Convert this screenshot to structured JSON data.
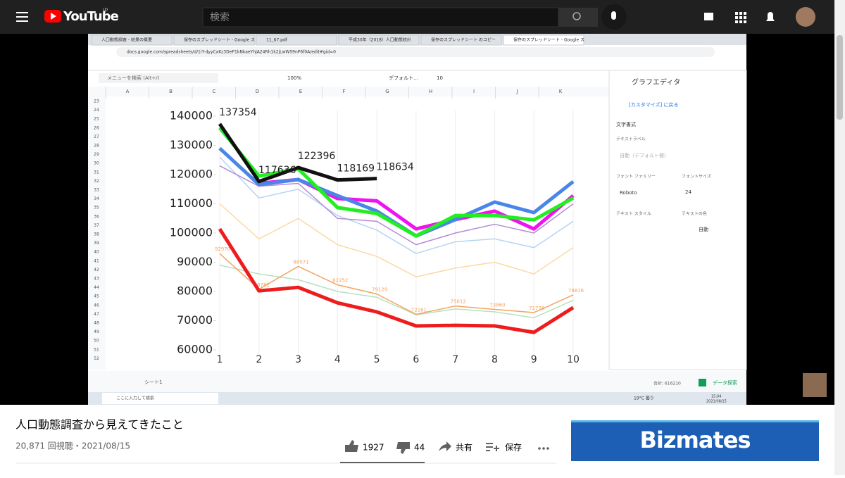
{
  "header": {
    "logo": "YouTube",
    "region": "JP",
    "search_placeholder": "検索"
  },
  "video": {
    "browser": {
      "tabs": [
        "人口動態調査 - 結果の概要",
        "保存のスプレッドシート - Google ス",
        "11_67.pdf",
        "平成30年（2018）人口動態統計",
        "保存のスプレッドシート のコピー",
        "保存のスプレッドシート - Google ス"
      ],
      "url": "docs.google.com/spreadsheets/d/1iY-dyyCxKz3DeP1kNkaeYhJA24Rh1k2jLwWS9nP6f0A/edit#gid=0"
    },
    "sheet": {
      "menu_search": "メニューを検索 (Alt+/)",
      "zoom": "100%",
      "font": "デフォルト...",
      "size": "10",
      "columns": [
        "A",
        "B",
        "C",
        "D",
        "E",
        "F",
        "G",
        "H",
        "I",
        "J",
        "K"
      ],
      "rows": [
        23,
        24,
        25,
        26,
        27,
        28,
        29,
        30,
        31,
        32,
        33,
        34,
        35,
        36,
        37,
        38,
        39,
        40,
        41,
        42,
        43,
        44,
        45,
        46,
        47,
        48,
        49,
        50,
        51,
        52
      ],
      "sheet_name": "シート1",
      "sum": "合計: 616210",
      "explore": "データ探索"
    },
    "editor": {
      "title": "グラフエディタ",
      "back": "[カスタマイズ] に戻る",
      "section": "文字書式",
      "text_label": "テキストラベル",
      "text_label_value": "自動（デフォルト値）",
      "font_family": "フォント ファミリー",
      "font_size": "フォントサイズ",
      "font_family_value": "Roboto",
      "font_size_value": "24",
      "text_style": "テキスト スタイル",
      "text_color": "テキストの色",
      "text_color_value": "自動"
    },
    "chart": {
      "ylim": [
        58000,
        142000
      ],
      "yticks": [
        60000,
        70000,
        80000,
        90000,
        100000,
        110000,
        120000,
        130000,
        140000
      ],
      "xlim": [
        0.9,
        10.85
      ],
      "x": [
        1,
        2,
        3,
        4,
        5,
        6,
        7,
        8,
        9,
        10
      ],
      "series": [
        {
          "color": "#b3d4f5",
          "values": [
            126000,
            112000,
            115000,
            106000,
            101000,
            93000,
            97000,
            98000,
            95000,
            104000
          ]
        },
        {
          "color": "#fbd9a6",
          "values": [
            110000,
            98000,
            105000,
            96000,
            92000,
            85000,
            88000,
            90000,
            86000,
            95000
          ]
        },
        {
          "color": "#b7e1c0",
          "values": [
            89000,
            86000,
            84000,
            80000,
            78000,
            72000,
            74000,
            73000,
            71000,
            77000
          ]
        },
        {
          "color": "#b38ad6",
          "values": [
            123000,
            116000,
            117000,
            105000,
            104000,
            96000,
            100000,
            103000,
            100000,
            110000
          ]
        },
        {
          "color": "#f4a460",
          "data_labels": true,
          "values": [
            92970,
            80782,
            88571,
            82252,
            79129,
            72161,
            75012,
            73860,
            72778,
            78816
          ]
        },
        {
          "color": "#ee1c1c",
          "values": [
            101400,
            80200,
            81400,
            76100,
            73000,
            68200,
            68400,
            68200,
            66000,
            74500
          ]
        },
        {
          "color": "#f012f0",
          "values": [
            null,
            117000,
            118300,
            111800,
            111000,
            101400,
            104600,
            107500,
            101400,
            112800
          ]
        },
        {
          "color": "#4a86e8",
          "values": [
            129000,
            116600,
            118300,
            112800,
            107500,
            99000,
            104600,
            110600,
            107000,
            117600
          ]
        },
        {
          "color": "#22ee22",
          "values": [
            136000,
            119500,
            122000,
            108700,
            106700,
            99000,
            106000,
            106000,
            104500,
            112000
          ]
        },
        {
          "color": "#111111",
          "data_labels": true,
          "values": [
            137354,
            117636,
            122396,
            118169,
            118634,
            null,
            null,
            null,
            null,
            null
          ]
        }
      ]
    },
    "taskbar": {
      "search": "ここに入力して検索",
      "weather": "19°C 曇り",
      "time": "15:04",
      "date": "2021/08/15"
    }
  },
  "title": "人口動態調査から見えてきたこと",
  "meta": "20,871 回視聴・2021/08/15",
  "actions": {
    "likes": 1927,
    "dislikes": 44,
    "share": "共有",
    "save": "保存"
  },
  "ad": {
    "brand": "Bizmates"
  }
}
